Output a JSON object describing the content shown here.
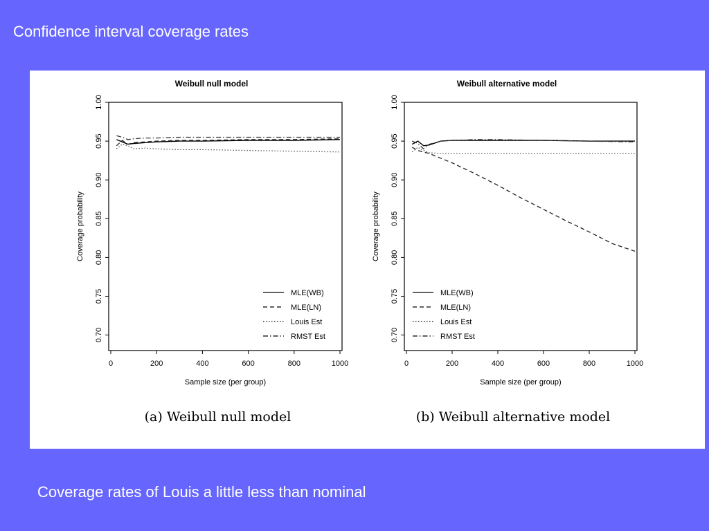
{
  "slide": {
    "title": "Confidence interval coverage rates",
    "footer": "Coverage rates of Louis a little less than nominal"
  },
  "chart_data": [
    {
      "type": "line",
      "title": "Weibull null model",
      "caption": "(a) Weibull null model",
      "xlabel": "Sample size (per group)",
      "ylabel": "Coverage probability",
      "xlim": [
        0,
        1000
      ],
      "ylim": [
        0.68,
        1.0
      ],
      "xticks": [
        0,
        200,
        400,
        600,
        800,
        1000
      ],
      "yticks": [
        0.7,
        0.75,
        0.8,
        0.85,
        0.9,
        0.95,
        1.0
      ],
      "ytick_labels": [
        "0.70",
        "0.75",
        "0.80",
        "0.85",
        "0.90",
        "0.95",
        "1.00"
      ],
      "legend_position": "bottom-right",
      "series": [
        {
          "name": "MLE(WB)",
          "style": "solid",
          "x": [
            25,
            50,
            75,
            100,
            150,
            200,
            300,
            400,
            600,
            800,
            1000
          ],
          "y": [
            0.952,
            0.949,
            0.946,
            0.947,
            0.948,
            0.949,
            0.95,
            0.95,
            0.951,
            0.951,
            0.952
          ]
        },
        {
          "name": "MLE(LN)",
          "style": "dashed",
          "x": [
            25,
            50,
            75,
            100,
            150,
            200,
            300,
            400,
            600,
            800,
            1000
          ],
          "y": [
            0.944,
            0.951,
            0.946,
            0.948,
            0.949,
            0.95,
            0.951,
            0.951,
            0.952,
            0.952,
            0.953
          ]
        },
        {
          "name": "Louis Est",
          "style": "dotted",
          "x": [
            25,
            50,
            75,
            100,
            150,
            200,
            300,
            400,
            600,
            800,
            1000
          ],
          "y": [
            0.94,
            0.946,
            0.944,
            0.94,
            0.941,
            0.94,
            0.939,
            0.939,
            0.938,
            0.937,
            0.936
          ]
        },
        {
          "name": "RMST Est",
          "style": "dotdash",
          "x": [
            25,
            50,
            75,
            100,
            150,
            200,
            300,
            400,
            600,
            800,
            1000
          ],
          "y": [
            0.957,
            0.955,
            0.952,
            0.953,
            0.954,
            0.954,
            0.955,
            0.955,
            0.955,
            0.955,
            0.955
          ]
        }
      ]
    },
    {
      "type": "line",
      "title": "Weibull alternative model",
      "caption": "(b) Weibull alternative model",
      "xlabel": "Sample size (per group)",
      "ylabel": "Coverage probability",
      "xlim": [
        0,
        1000
      ],
      "ylim": [
        0.68,
        1.0
      ],
      "xticks": [
        0,
        200,
        400,
        600,
        800,
        1000
      ],
      "yticks": [
        0.7,
        0.75,
        0.8,
        0.85,
        0.9,
        0.95,
        1.0
      ],
      "ytick_labels": [
        "0.70",
        "0.75",
        "0.80",
        "0.85",
        "0.90",
        "0.95",
        "1.00"
      ],
      "legend_position": "bottom-left",
      "series": [
        {
          "name": "MLE(WB)",
          "style": "solid",
          "x": [
            25,
            50,
            75,
            100,
            150,
            200,
            300,
            400,
            600,
            800,
            1000
          ],
          "y": [
            0.946,
            0.95,
            0.944,
            0.945,
            0.95,
            0.951,
            0.951,
            0.951,
            0.951,
            0.95,
            0.95
          ]
        },
        {
          "name": "MLE(LN)",
          "style": "dashed",
          "x": [
            25,
            50,
            100,
            150,
            200,
            300,
            400,
            500,
            600,
            700,
            800,
            900,
            1000
          ],
          "y": [
            0.942,
            0.938,
            0.934,
            0.928,
            0.922,
            0.908,
            0.893,
            0.877,
            0.862,
            0.847,
            0.833,
            0.818,
            0.808
          ]
        },
        {
          "name": "Louis Est",
          "style": "dotted",
          "x": [
            25,
            50,
            75,
            100,
            150,
            200,
            300,
            400,
            600,
            800,
            1000
          ],
          "y": [
            0.936,
            0.942,
            0.938,
            0.935,
            0.934,
            0.934,
            0.934,
            0.934,
            0.934,
            0.934,
            0.934
          ]
        },
        {
          "name": "RMST Est",
          "style": "dotdash",
          "x": [
            25,
            50,
            75,
            100,
            150,
            200,
            300,
            400,
            600,
            800,
            1000
          ],
          "y": [
            0.95,
            0.947,
            0.94,
            0.946,
            0.95,
            0.951,
            0.952,
            0.952,
            0.951,
            0.95,
            0.949
          ]
        }
      ]
    }
  ]
}
